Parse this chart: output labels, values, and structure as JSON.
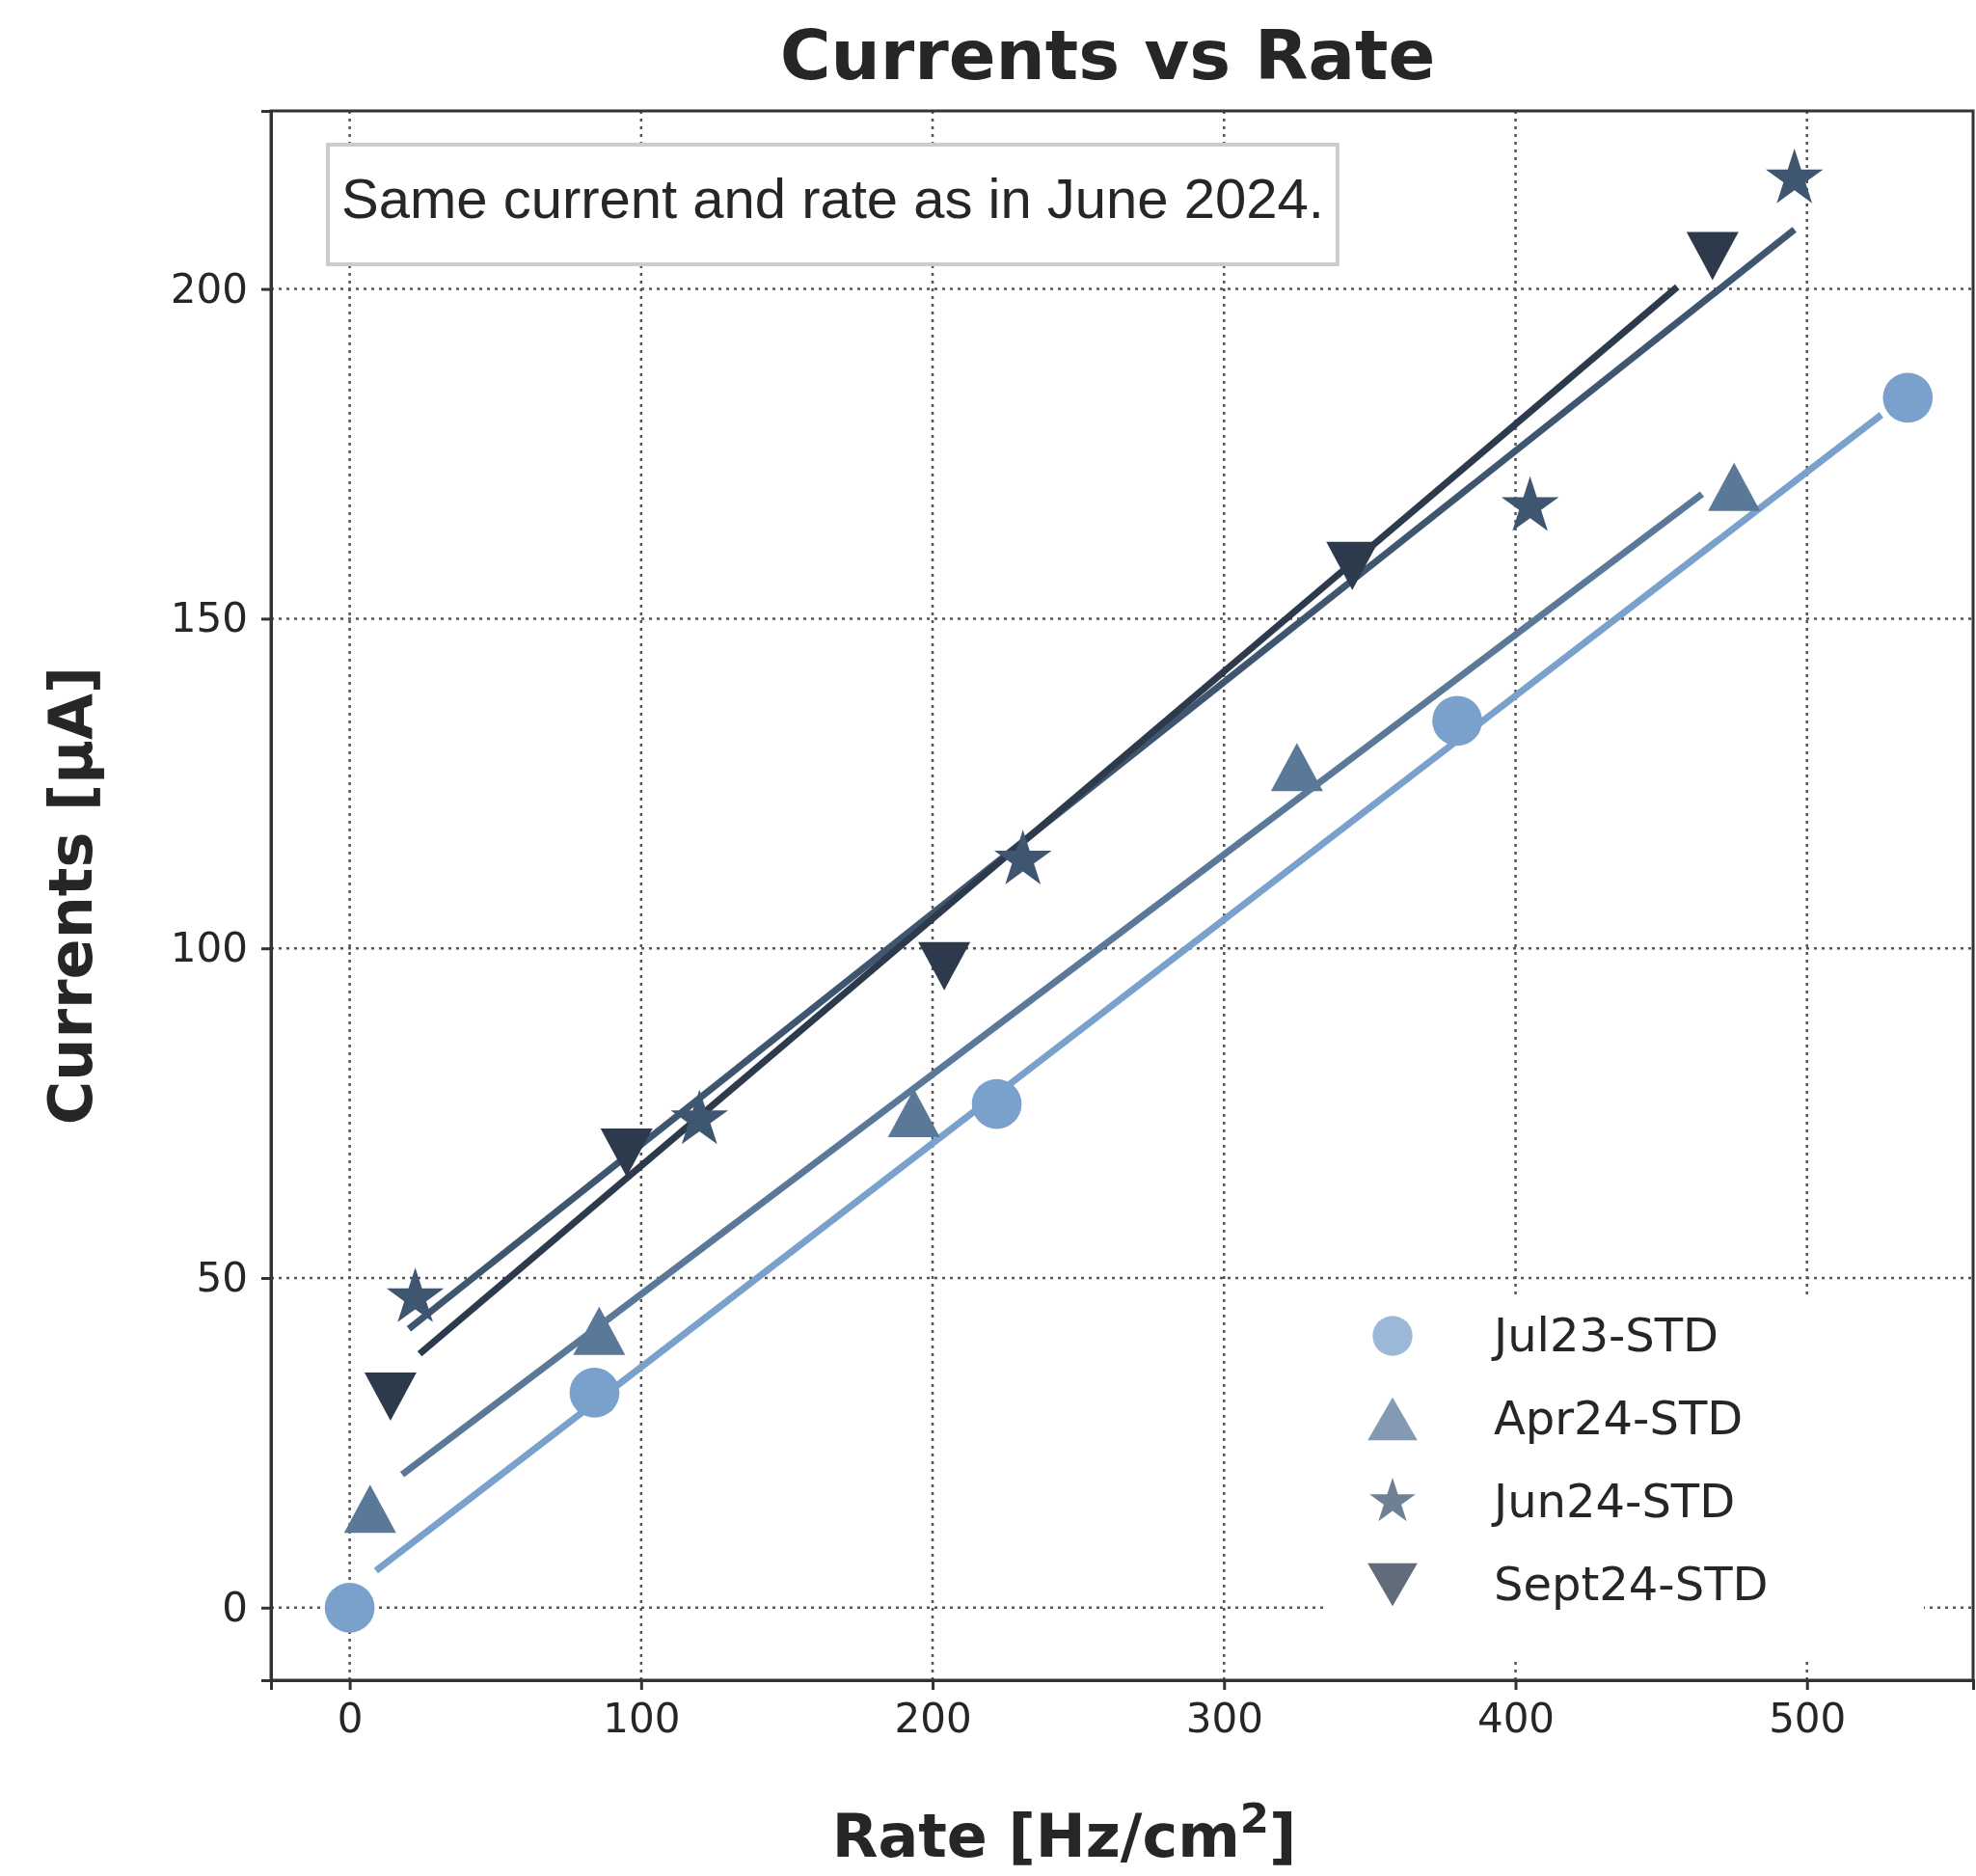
{
  "chart_data": {
    "type": "scatter",
    "title": "Currents vs Rate",
    "xlabel": "Rate [Hz/cm$^{2}$]",
    "ylabel": "Currents [µA]",
    "xlim": [
      -27,
      557
    ],
    "ylim": [
      -11,
      227
    ],
    "xticks": [
      0,
      100,
      200,
      300,
      400,
      500
    ],
    "yticks": [
      0,
      50,
      100,
      150,
      200
    ],
    "grid": true,
    "legend": "bottom right",
    "annotations": [
      "Same current and rate as in June 2024."
    ],
    "series": [
      {
        "type": "line",
        "color": "#7aa0cc",
        "x": [
          9,
          525.5
        ],
        "values": [
          5.6,
          180.9
        ]
      },
      {
        "type": "line",
        "color": "#5a7898",
        "x": [
          18,
          464
        ],
        "values": [
          20.2,
          168.9
        ]
      },
      {
        "type": "line",
        "color": "#3f5670",
        "x": [
          20.3,
          495.7
        ],
        "values": [
          42.3,
          209
        ]
      },
      {
        "type": "line",
        "color": "#2c3a4c",
        "x": [
          24,
          455.5
        ],
        "values": [
          38.5,
          200.3
        ]
      },
      {
        "name": "Jul23-STD",
        "color": "#7aa0cc",
        "marker": "circle",
        "x": [
          0,
          84,
          222,
          380,
          534.6
        ],
        "values": [
          0,
          32.6,
          76.4,
          134.5,
          183.5
        ]
      },
      {
        "name": "Apr24-STD",
        "color": "#5a7898",
        "marker": "triangle",
        "x": [
          7,
          85.6,
          193.6,
          325,
          475
        ],
        "values": [
          15,
          42,
          75,
          127.5,
          170
        ]
      },
      {
        "name": "Jun24-STD",
        "color": "#3f5670",
        "marker": "star",
        "x": [
          22.5,
          120,
          231,
          405,
          495.7
        ],
        "values": [
          47,
          74,
          113.4,
          167,
          216.7
        ]
      },
      {
        "name": "Sept24-STD",
        "color": "#2c3a4c",
        "marker": "triangle-down",
        "x": [
          14,
          95,
          204,
          344,
          467.6
        ],
        "values": [
          32,
          69,
          97.3,
          158,
          205
        ]
      }
    ]
  }
}
